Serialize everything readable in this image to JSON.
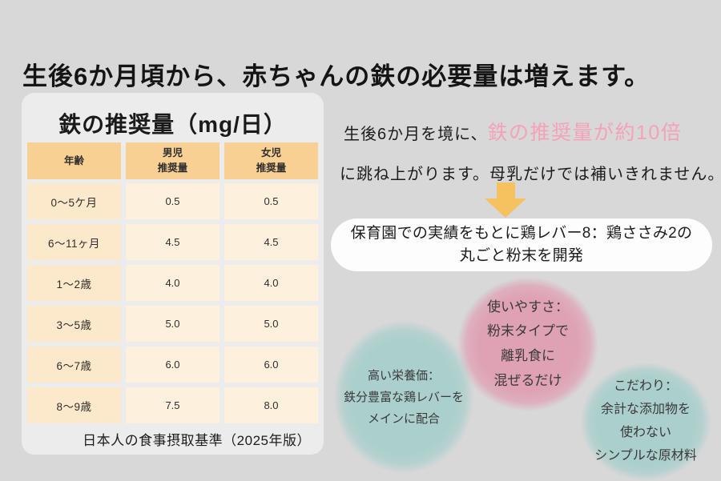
{
  "title": "生後6か月頃から、赤ちゃんの鉄の必要量は増えます。",
  "card": {
    "title": "鉄の推奨量（mg/日）",
    "table": {
      "headers": [
        "年齢",
        "男児\n推奨量",
        "女児\n推奨量"
      ],
      "rows": [
        {
          "age": "0～5ケ月",
          "male": "0.5",
          "female": "0.5"
        },
        {
          "age": "6～11ヶ月",
          "male": "4.5",
          "female": "4.5"
        },
        {
          "age": "1～2歳",
          "male": "4.0",
          "female": "4.0"
        },
        {
          "age": "3～5歳",
          "male": "5.0",
          "female": "5.0"
        },
        {
          "age": "6～7歳",
          "male": "6.0",
          "female": "6.0"
        },
        {
          "age": "8～9歳",
          "male": "7.5",
          "female": "8.0"
        }
      ]
    },
    "source": "日本人の食事摂取基準（2025年版）"
  },
  "callout": {
    "lead_black": "生後6か月を境に、",
    "lead_pink": "鉄の推奨量が約10倍",
    "line2": "に跳ね上がります。母乳だけでは補いきれません。"
  },
  "development_box": {
    "line1": "保育園での実績をもとに鶏レバー8：鶏ささみ2の",
    "line2": "丸ごと粉末を開発"
  },
  "bubbles": [
    {
      "lines": [
        "高い栄養価：",
        "鉄分豊富な鶏レバーを",
        "メインに配合"
      ]
    },
    {
      "lines": [
        "使いやすさ：",
        "粉末タイプで",
        "離乳食に",
        "混ぜるだけ"
      ]
    },
    {
      "lines": [
        "こだわり：",
        "余計な添加物を",
        "使わない",
        "シンプルな原材料"
      ]
    }
  ],
  "colors": {
    "page_bg": "#d8d8d8",
    "card_bg": "#ececec",
    "table_header": "#f9d094",
    "table_age_cell": "#fce8cb",
    "table_value_cell": "#fdf1de",
    "highlight_pink_text": "#f3a2b7",
    "arrow_yellow": "#f6c25f",
    "bubble_teal": "#aacfcc",
    "bubble_pink": "#dfa2b5",
    "dev_box_bg": "#fdfdfd"
  }
}
